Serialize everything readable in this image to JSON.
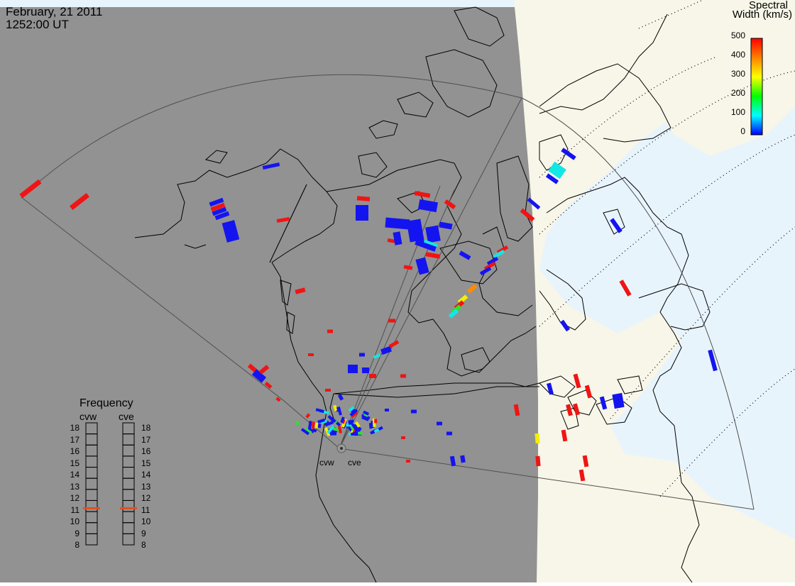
{
  "header": {
    "date": "February, 21 2011",
    "time": "1252:00 UT"
  },
  "colorbar": {
    "title_line1": "Spectral",
    "title_line2": "Width (km/s)",
    "ticks": [
      "500",
      "400",
      "300",
      "200",
      "100",
      "0"
    ]
  },
  "frequency": {
    "title": "Frequency",
    "cvw_label": "cvw",
    "cve_label": "cve",
    "scale": [
      "18",
      "17",
      "16",
      "15",
      "14",
      "13",
      "12",
      "11",
      "10",
      "9",
      "8"
    ],
    "cvw_value": 10.8,
    "cve_value": 10.8
  },
  "radars": {
    "west": "cvw",
    "east": "cve"
  },
  "colors": {
    "night": "#929292",
    "land_day": "#f7f6e8",
    "ocean_day": "#e8f4fc",
    "low": "#1414f0",
    "mid": "#14e6e6",
    "high": "#f01414",
    "freq_marker": "#e0501e"
  }
}
